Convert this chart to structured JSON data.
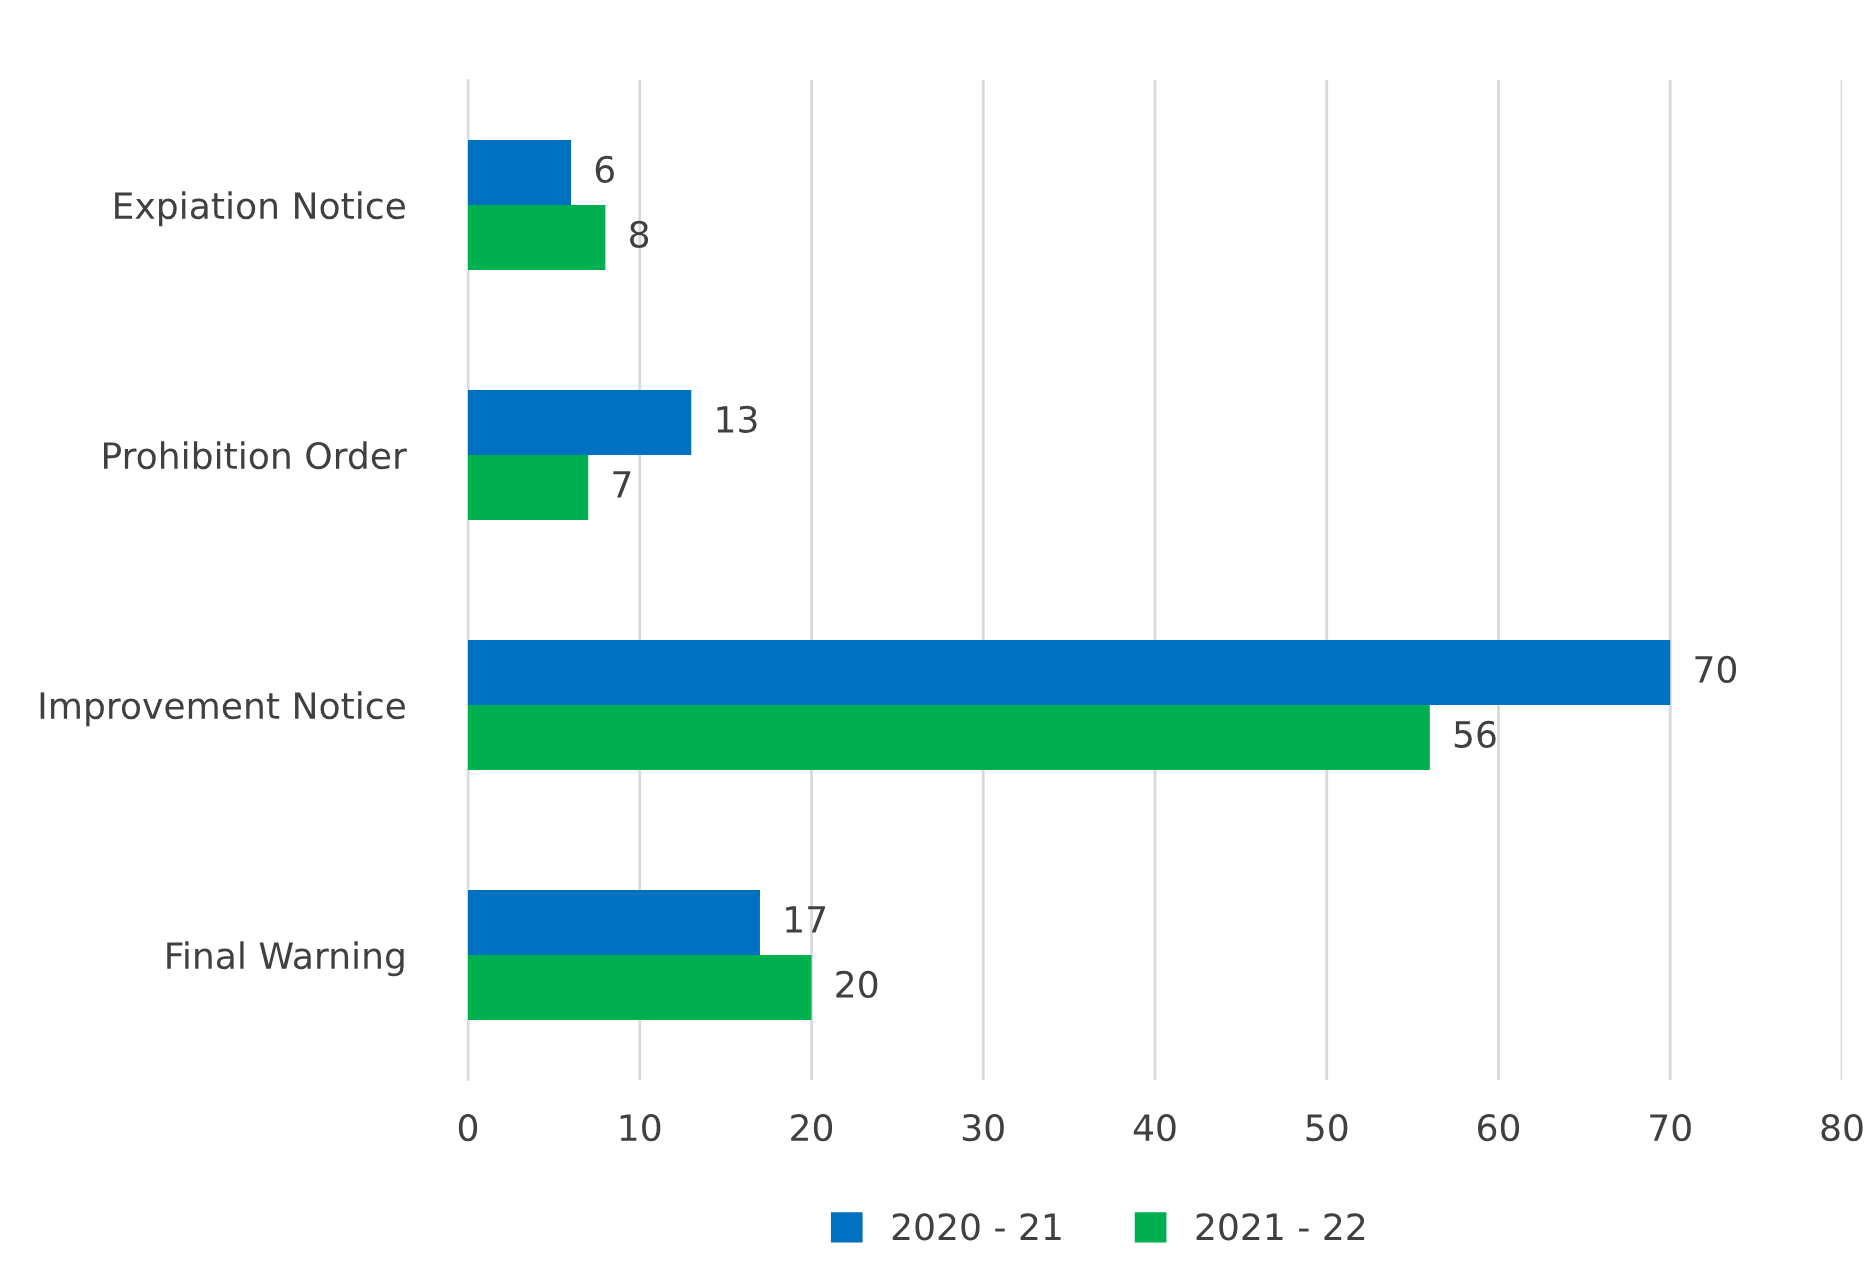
{
  "chart_data": {
    "type": "bar",
    "orientation": "horizontal",
    "categories": [
      "Expiation Notice",
      "Prohibition Order",
      "Improvement Notice",
      "Final Warning"
    ],
    "series": [
      {
        "name": "2020 - 21",
        "color": "#0070c0",
        "values": [
          6,
          13,
          70,
          17
        ]
      },
      {
        "name": "2021 - 22",
        "color": "#00b050",
        "values": [
          8,
          7,
          56,
          20
        ]
      }
    ],
    "xlim": [
      0,
      80
    ],
    "xticks": [
      0,
      10,
      20,
      30,
      40,
      50,
      60,
      70,
      80
    ],
    "grid": "x",
    "legend": "bottom",
    "data_labels": true
  }
}
